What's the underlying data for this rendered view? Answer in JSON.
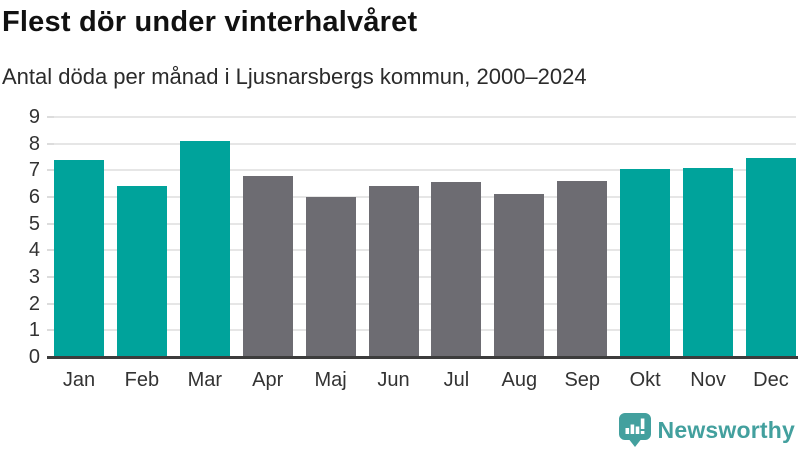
{
  "header": {
    "title": "Flest dör under vinterhalvåret",
    "subtitle": "Antal döda per månad i Ljusnarsbergs kommun, 2000–2024"
  },
  "chart_data": {
    "type": "bar",
    "title": "Flest dör under vinterhalvåret",
    "subtitle": "Antal döda per månad i Ljusnarsbergs kommun, 2000–2024",
    "categories": [
      "Jan",
      "Feb",
      "Mar",
      "Apr",
      "Maj",
      "Jun",
      "Jul",
      "Aug",
      "Sep",
      "Okt",
      "Nov",
      "Dec"
    ],
    "values": [
      7.4,
      6.4,
      8.1,
      6.8,
      6.0,
      6.4,
      6.55,
      6.1,
      6.6,
      7.05,
      7.1,
      7.45
    ],
    "bar_colors": [
      "#00a39b",
      "#00a39b",
      "#00a39b",
      "#6d6c72",
      "#6d6c72",
      "#6d6c72",
      "#6d6c72",
      "#6d6c72",
      "#6d6c72",
      "#00a39b",
      "#00a39b",
      "#00a39b"
    ],
    "highlight_color": "#00a39b",
    "muted_color": "#6d6c72",
    "highlight_categories": [
      "Jan",
      "Feb",
      "Mar",
      "Okt",
      "Nov",
      "Dec"
    ],
    "xlabel": "",
    "ylabel": "",
    "ylim": [
      0,
      9
    ],
    "yticks": [
      0,
      1,
      2,
      3,
      4,
      5,
      6,
      7,
      8,
      9
    ],
    "grid": true,
    "legend": false
  },
  "footer": {
    "brand": "Newsworthy",
    "brand_color": "#43a09e",
    "logo_icon": "bar-chart-speech-bubble-icon"
  },
  "colors": {
    "background": "#ffffff",
    "title": "#111111",
    "subtitle": "#2b2b2b",
    "axis_label": "#333333",
    "gridline": "#e6e6e6",
    "baseline": "#3c3c3c"
  }
}
